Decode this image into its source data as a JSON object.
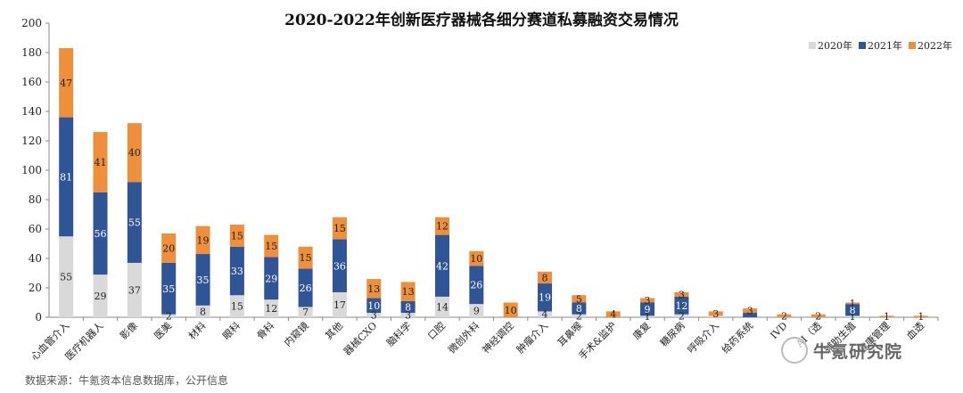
{
  "chart_data": {
    "type": "bar",
    "stacked": true,
    "title": "2020-2022年创新医疗器械各细分赛道私募融资交易情况",
    "ylim": [
      0,
      200
    ],
    "yticks": [
      0,
      20,
      40,
      60,
      80,
      100,
      120,
      140,
      160,
      180,
      200
    ],
    "grid": false,
    "legend_position": "top-right",
    "categories": [
      "心血管介入",
      "医疗机器人",
      "影像",
      "医美",
      "材料",
      "眼科",
      "骨科",
      "内窥镜",
      "其他",
      "器械CXO",
      "脑科学",
      "口腔",
      "微创外科",
      "神经调控",
      "肿瘤介入",
      "耳鼻喉",
      "手术&监护",
      "康复",
      "糖尿病",
      "呼吸介入",
      "给药系统",
      "IVD",
      "AI（透析）",
      "辅助生殖",
      "健康管理",
      "血透"
    ],
    "category_labels_visible": [
      "心血管介入",
      "医疗机器人",
      "影像",
      "医美",
      "材料",
      "眼科",
      "骨科",
      "内窥镜",
      "其他",
      "器械CXO",
      "脑科学",
      "口腔",
      "微创外科",
      "神经调控",
      "肿瘤介入",
      "耳鼻喉",
      "手术&监护",
      "康复",
      "糖尿病",
      "呼吸介入",
      "给药系统",
      "IVD",
      "AI（透",
      "辅助生殖",
      "健康管理",
      "血透"
    ],
    "series": [
      {
        "name": "2020年",
        "color": "#d9d9d9",
        "values": [
          55,
          29,
          37,
          2,
          8,
          15,
          12,
          7,
          17,
          3,
          3,
          14,
          9,
          0,
          4,
          2,
          0,
          1,
          2,
          1,
          0,
          0,
          0,
          1,
          0,
          0
        ]
      },
      {
        "name": "2021年",
        "color": "#2f5597",
        "values": [
          81,
          56,
          55,
          35,
          35,
          33,
          29,
          26,
          36,
          10,
          8,
          42,
          26,
          0,
          19,
          8,
          0,
          9,
          12,
          0,
          3,
          0,
          0,
          8,
          0,
          0
        ]
      },
      {
        "name": "2022年",
        "color": "#ed8f3b",
        "values": [
          47,
          41,
          40,
          20,
          19,
          15,
          15,
          15,
          15,
          13,
          13,
          12,
          10,
          10,
          8,
          5,
          4,
          3,
          3,
          3,
          3,
          2,
          2,
          1,
          1,
          1
        ]
      }
    ],
    "data_labels": [
      [
        "55",
        "81",
        "47"
      ],
      [
        "29",
        "56",
        "41"
      ],
      [
        "37",
        "55",
        "40"
      ],
      [
        "2",
        "35",
        "20"
      ],
      [
        "8",
        "35",
        "19"
      ],
      [
        "15",
        "33",
        "15"
      ],
      [
        "12",
        "29",
        "15"
      ],
      [
        "7",
        "26",
        "15"
      ],
      [
        "17",
        "36",
        "15"
      ],
      [
        "3",
        "10",
        "13"
      ],
      [
        "3",
        "8",
        "13"
      ],
      [
        "14",
        "42",
        "12"
      ],
      [
        "9",
        "26",
        "10"
      ],
      [
        "",
        "",
        "10"
      ],
      [
        "4",
        "19",
        "8"
      ],
      [
        "2",
        "8",
        "5"
      ],
      [
        "",
        "",
        "4"
      ],
      [
        "1",
        "9",
        "3"
      ],
      [
        "2",
        "12",
        "3"
      ],
      [
        "",
        "",
        "3"
      ],
      [
        "",
        "",
        "3"
      ],
      [
        "",
        "",
        "2"
      ],
      [
        "",
        "",
        "2"
      ],
      [
        "1",
        "8",
        "1"
      ],
      [
        "",
        "",
        "1"
      ],
      [
        "",
        "",
        "1"
      ]
    ]
  },
  "source_note": "数据来源：牛氪资本信息数据库，公开信息",
  "watermark": "牛氪研究院"
}
